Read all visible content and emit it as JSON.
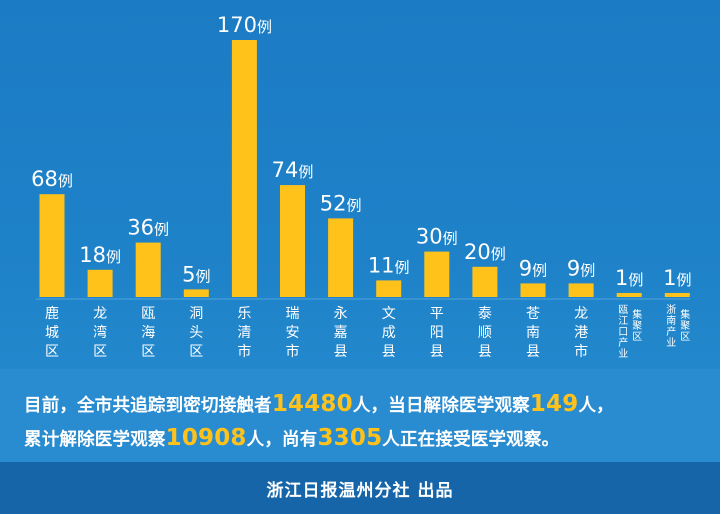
{
  "chart_data": {
    "type": "bar",
    "categories": [
      "鹿城区",
      "龙湾区",
      "瓯海区",
      "洞头区",
      "乐清市",
      "瑞安市",
      "永嘉县",
      "文成县",
      "平阳县",
      "泰顺县",
      "苍南县",
      "龙港市",
      "瓯江口产业集聚区",
      "浙南产业集聚区"
    ],
    "category_lines": [
      [
        "鹿",
        "城",
        "区"
      ],
      [
        "龙",
        "湾",
        "区"
      ],
      [
        "瓯",
        "海",
        "区"
      ],
      [
        "洞",
        "头",
        "区"
      ],
      [
        "乐",
        "清",
        "市"
      ],
      [
        "瑞",
        "安",
        "市"
      ],
      [
        "永",
        "嘉",
        "县"
      ],
      [
        "文",
        "成",
        "县"
      ],
      [
        "平",
        "阳",
        "县"
      ],
      [
        "泰",
        "顺",
        "县"
      ],
      [
        "苍",
        "南",
        "县"
      ],
      [
        "龙",
        "港",
        "市"
      ],
      [
        [
          "瓯",
          "江",
          "口",
          "产",
          "业"
        ],
        [
          "集",
          "聚",
          "区"
        ]
      ],
      [
        [
          "浙",
          "南",
          "产",
          "业"
        ],
        [
          "集",
          "聚",
          "区"
        ]
      ]
    ],
    "values": [
      68,
      18,
      36,
      5,
      170,
      74,
      52,
      11,
      30,
      20,
      9,
      9,
      1,
      1
    ],
    "unit": "例",
    "bar_color": "#ffc21b",
    "ylim": [
      0,
      170
    ]
  },
  "summary": {
    "line1": [
      {
        "text": "目前，全市共追踪到密切接触者",
        "highlight": false
      },
      {
        "text": "14480",
        "highlight": true
      },
      {
        "text": "人，当日解除医学观察",
        "highlight": false
      },
      {
        "text": "149",
        "highlight": true
      },
      {
        "text": "人，",
        "highlight": false
      }
    ],
    "line2": [
      {
        "text": "累计解除医学观察",
        "highlight": false
      },
      {
        "text": "10908",
        "highlight": true
      },
      {
        "text": "人，尚有",
        "highlight": false
      },
      {
        "text": "3305",
        "highlight": true
      },
      {
        "text": "人正在接受医学观察。",
        "highlight": false
      }
    ],
    "highlight_color": "#ffc21b"
  },
  "footer": {
    "text": "浙江日报温州分社 出品"
  }
}
